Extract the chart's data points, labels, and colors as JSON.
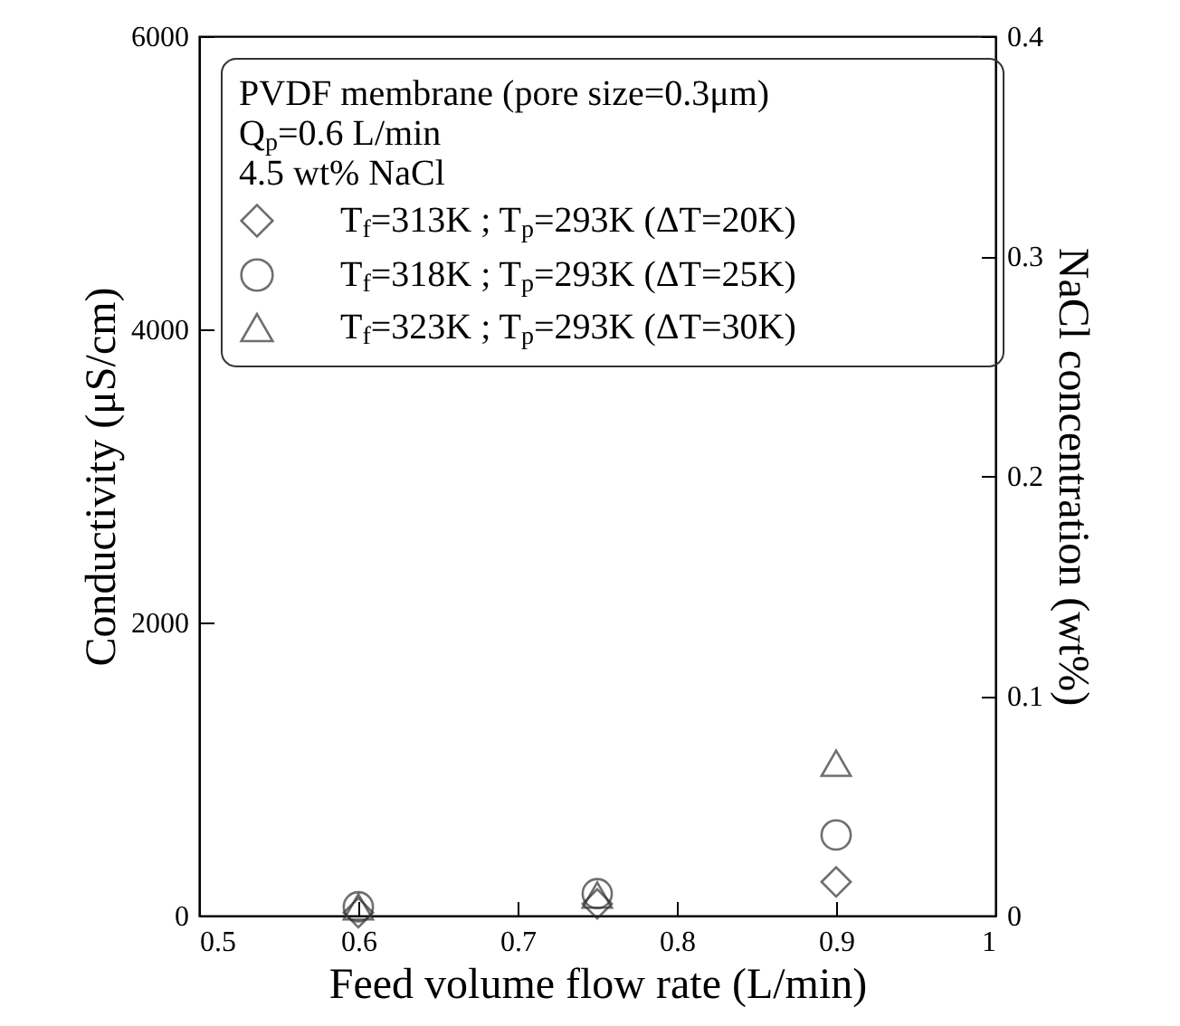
{
  "chart_data": {
    "type": "scatter",
    "xlabel": "Feed volume flow rate (L/min)",
    "ylabel": "Conductivity (μS/cm)",
    "y2label": "NaCl concentration (wt%)",
    "legend_title": "PVDF membrane (pore size=0.3μm)\nQ$_{p}$=0.6 L/min\n4.5 wt% NaCl",
    "legend": "top left",
    "x": [
      0.6,
      0.75,
      0.9
    ],
    "series": [
      {
        "name": "T$_{f}$=313K ; T$_{p}$=293K (ΔT=20K)",
        "color": "#333333",
        "marker": "diamond",
        "values": [
          20,
          80,
          230
        ]
      },
      {
        "name": "T$_{f}$=318K ; T$_{p}$=293K (ΔT=25K)",
        "color": "#333333",
        "marker": "circle",
        "values": [
          60,
          150,
          550
        ]
      },
      {
        "name": "T$_{f}$=323K ; T$_{p}$=293K (ΔT=30K)",
        "color": "#333333",
        "marker": "triangle",
        "values": [
          60,
          140,
          1040
        ]
      }
    ],
    "xlim": [
      0.5,
      1
    ],
    "xticks": [
      0.5,
      0.6,
      0.7,
      0.8,
      0.9,
      1
    ],
    "ylim": [
      0,
      6000
    ],
    "yticks": [
      0,
      2000,
      4000,
      6000
    ],
    "y2lim": [
      0,
      0.4
    ],
    "y2ticks": [
      0,
      0.1,
      0.2,
      0.3,
      0.4
    ]
  }
}
